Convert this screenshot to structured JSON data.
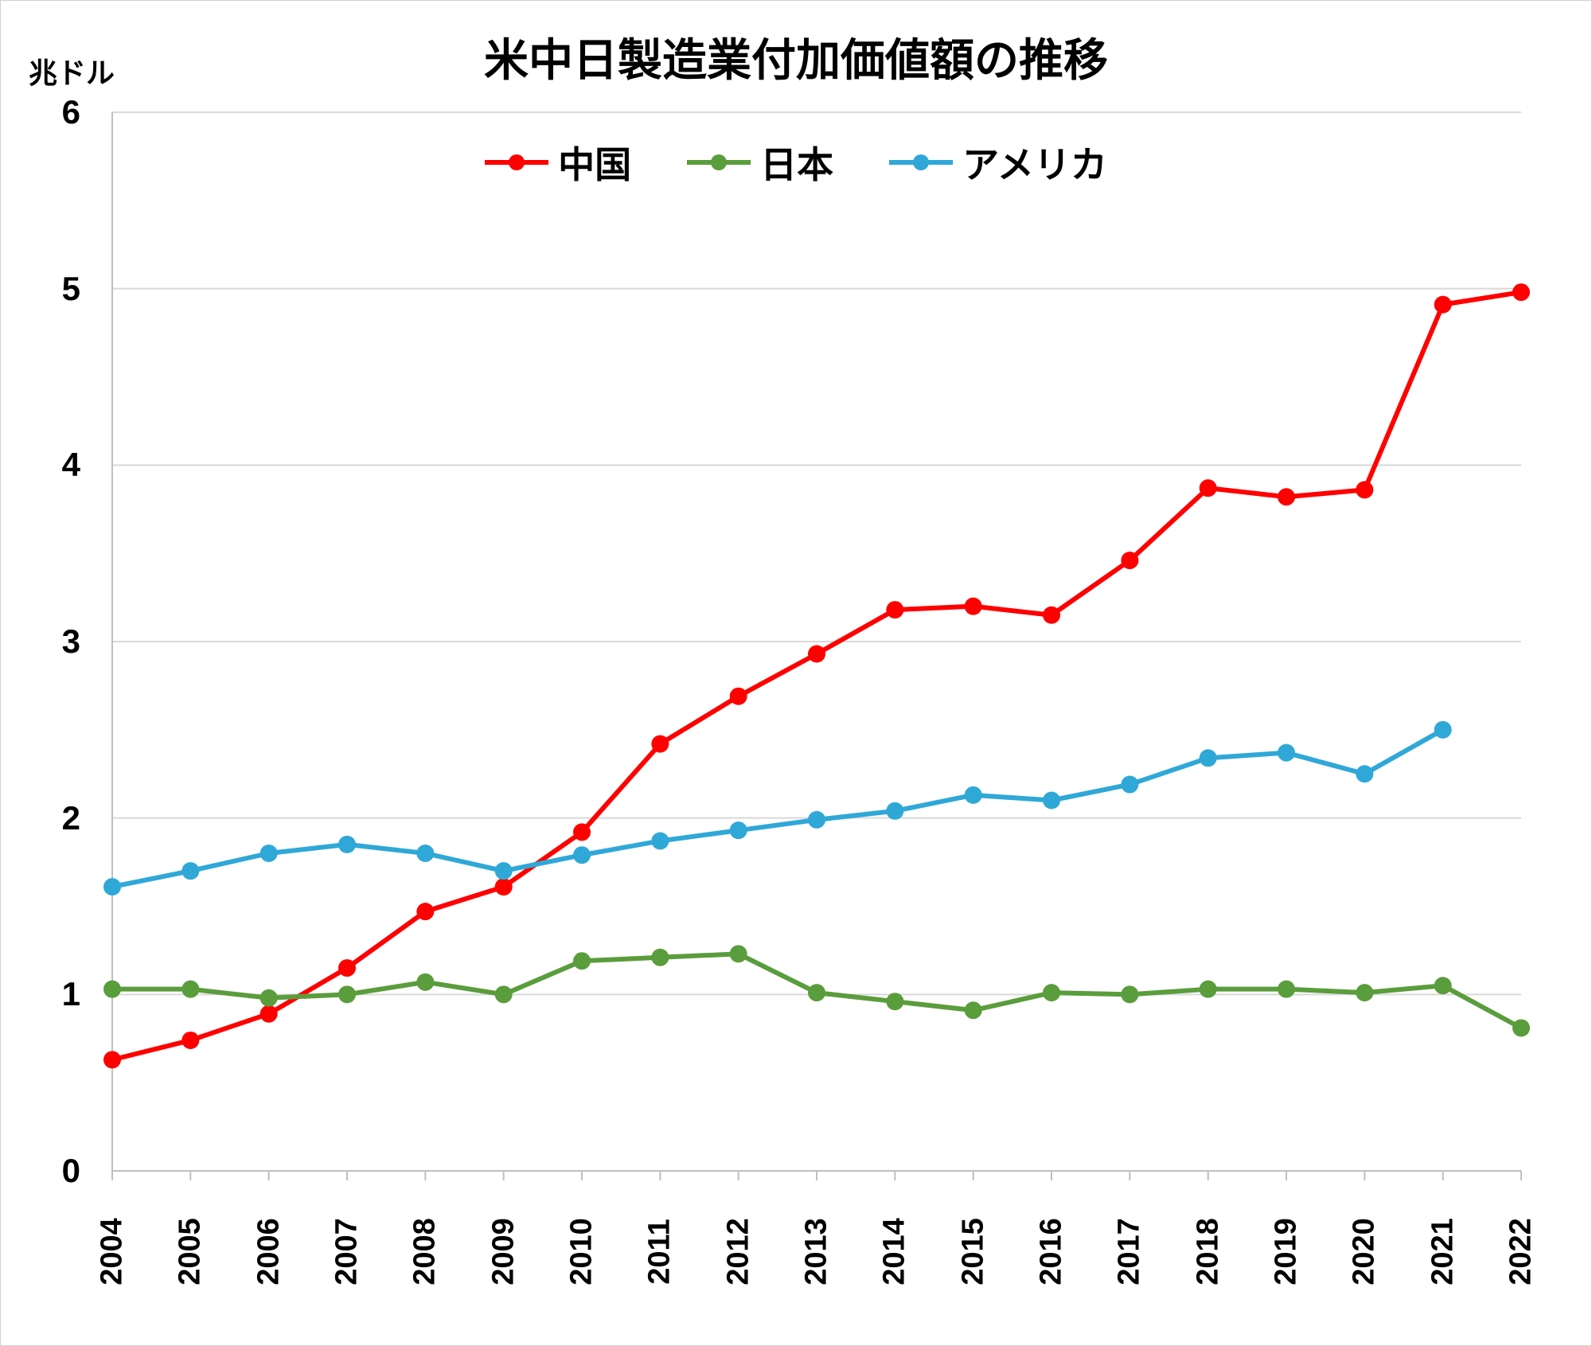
{
  "chart": {
    "type": "line",
    "title": "米中日製造業付加価値額の推移",
    "ylabel_unit": "兆ドル",
    "background_color": "#ffffff",
    "grid_color": "#d9d9d9",
    "axis_color": "#bfbfbf",
    "title_fontsize": 56,
    "label_fontsize": 38,
    "tick_fontsize": 42,
    "legend_fontsize": 46,
    "line_width": 6,
    "marker_radius": 11,
    "years": [
      "2004",
      "2005",
      "2006",
      "2007",
      "2008",
      "2009",
      "2010",
      "2011",
      "2012",
      "2013",
      "2014",
      "2015",
      "2016",
      "2017",
      "2018",
      "2019",
      "2020",
      "2021",
      "2022"
    ],
    "ylim": [
      0,
      6
    ],
    "ytick_step": 1,
    "yticks": [
      "0",
      "1",
      "2",
      "3",
      "4",
      "5",
      "6"
    ],
    "series": [
      {
        "name": "中国",
        "color": "#ff0000",
        "values": [
          0.63,
          0.74,
          0.89,
          1.15,
          1.47,
          1.61,
          1.92,
          2.42,
          2.69,
          2.93,
          3.18,
          3.2,
          3.15,
          3.46,
          3.87,
          3.82,
          3.86,
          4.91,
          4.98
        ]
      },
      {
        "name": "日本",
        "color": "#5a9d3c",
        "values": [
          1.03,
          1.03,
          0.98,
          1.0,
          1.07,
          1.0,
          1.19,
          1.21,
          1.23,
          1.01,
          0.96,
          0.91,
          1.01,
          1.0,
          1.03,
          1.03,
          1.01,
          1.05,
          0.81
        ]
      },
      {
        "name": "アメリカ",
        "color": "#2fa8d8",
        "values": [
          1.61,
          1.7,
          1.8,
          1.85,
          1.8,
          1.7,
          1.79,
          1.87,
          1.93,
          1.99,
          2.04,
          2.13,
          2.1,
          2.19,
          2.34,
          2.37,
          2.25,
          2.5,
          null
        ]
      }
    ],
    "legend_position": "top-center"
  }
}
